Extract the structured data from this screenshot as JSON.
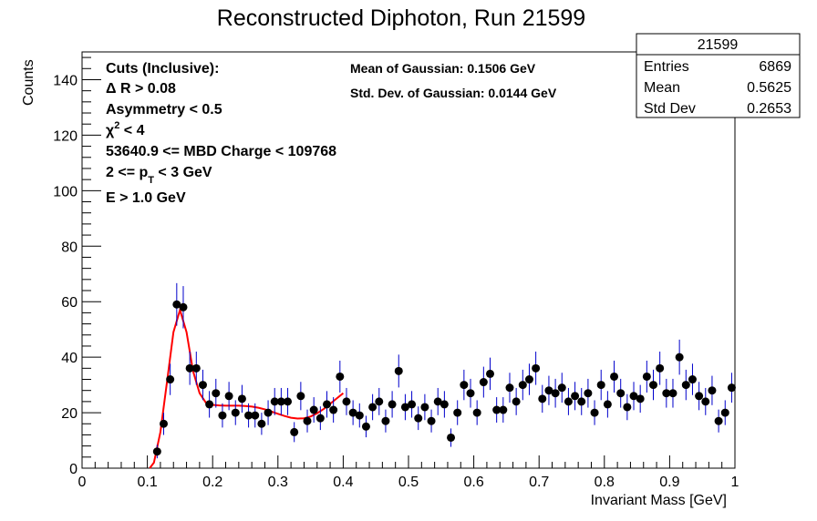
{
  "colors": {
    "fit": "#ff0000",
    "points": "#000000",
    "errors": "#0000cc",
    "frame": "#000000"
  },
  "chart_data": {
    "type": "scatter",
    "title": "Reconstructed Diphoton, Run 21599",
    "xlabel": "Invariant Mass [GeV]",
    "ylabel": "Counts",
    "xlim": [
      0,
      1
    ],
    "ylim": [
      0,
      150
    ],
    "x_ticks": [
      "0",
      "0.1",
      "0.2",
      "0.3",
      "0.4",
      "0.5",
      "0.6",
      "0.7",
      "0.8",
      "0.9",
      "1"
    ],
    "y_ticks": [
      "0",
      "20",
      "40",
      "60",
      "80",
      "100",
      "120",
      "140"
    ],
    "grid": false,
    "legend": "none",
    "cuts": {
      "header": "Cuts (Inclusive):",
      "delta_r": "Δ R > 0.08",
      "asymmetry": "Asymmetry < 0.5",
      "chi2_symbol": "χ",
      "chi2_exp": "2",
      "chi2_rest": " < 4",
      "mbd": "53640.9 <= MBD Charge < 109768",
      "pt_pre": "2 <= p",
      "pt_sub": "T",
      "pt_post": " < 3 GeV",
      "energy": "E > 1.0 GeV"
    },
    "fit_info": {
      "mean": "Mean of Gaussian: 0.1506 GeV",
      "stddev": "Std. Dev. of Gaussian: 0.0144 GeV"
    },
    "stats_box": {
      "title": "21599",
      "rows": [
        {
          "label": "Entries",
          "value": "6869"
        },
        {
          "label": "Mean",
          "value": "0.5625"
        },
        {
          "label": "Std Dev",
          "value": "0.2653"
        }
      ]
    },
    "points": {
      "x": [
        0.115,
        0.125,
        0.135,
        0.145,
        0.155,
        0.165,
        0.175,
        0.185,
        0.195,
        0.205,
        0.215,
        0.225,
        0.235,
        0.245,
        0.255,
        0.265,
        0.275,
        0.285,
        0.295,
        0.305,
        0.315,
        0.325,
        0.335,
        0.345,
        0.355,
        0.365,
        0.375,
        0.385,
        0.395,
        0.405,
        0.415,
        0.425,
        0.435,
        0.445,
        0.455,
        0.465,
        0.475,
        0.485,
        0.495,
        0.505,
        0.515,
        0.525,
        0.535,
        0.545,
        0.555,
        0.565,
        0.575,
        0.585,
        0.595,
        0.605,
        0.615,
        0.625,
        0.635,
        0.645,
        0.655,
        0.665,
        0.675,
        0.685,
        0.695,
        0.705,
        0.715,
        0.725,
        0.735,
        0.745,
        0.755,
        0.765,
        0.775,
        0.785,
        0.795,
        0.805,
        0.815,
        0.825,
        0.835,
        0.845,
        0.855,
        0.865,
        0.875,
        0.885,
        0.895,
        0.905,
        0.915,
        0.925,
        0.935,
        0.945,
        0.955,
        0.965,
        0.975,
        0.985,
        0.995
      ],
      "y": [
        6,
        16,
        32,
        59,
        58,
        36,
        36,
        30,
        23,
        27,
        19,
        26,
        20,
        25,
        19,
        19,
        16,
        20,
        24,
        24,
        24,
        13,
        26,
        17,
        21,
        18,
        23,
        21,
        33,
        24,
        20,
        19,
        15,
        22,
        24,
        17,
        23,
        35,
        22,
        23,
        18,
        22,
        17,
        24,
        23,
        11,
        20,
        30,
        27,
        20,
        31,
        34,
        21,
        21,
        29,
        24,
        30,
        32,
        36,
        25,
        28,
        27,
        29,
        24,
        26,
        24,
        27,
        20,
        30,
        23,
        33,
        27,
        22,
        26,
        25,
        33,
        30,
        36,
        27,
        27,
        40,
        30,
        32,
        26,
        24,
        28,
        17,
        20,
        29
      ]
    },
    "fit": {
      "function": "gaussian + polynomial",
      "mean": 0.1506,
      "sigma": 0.0144,
      "x_range": [
        0.1,
        0.4
      ],
      "x": [
        0.1,
        0.11,
        0.12,
        0.13,
        0.14,
        0.15,
        0.16,
        0.17,
        0.18,
        0.19,
        0.2,
        0.21,
        0.22,
        0.23,
        0.24,
        0.25,
        0.26,
        0.27,
        0.28,
        0.29,
        0.3,
        0.31,
        0.32,
        0.33,
        0.34,
        0.35,
        0.36,
        0.37,
        0.38,
        0.39,
        0.4
      ],
      "y": [
        -3,
        2,
        13,
        31,
        49,
        57,
        49,
        35,
        27,
        23.5,
        22.8,
        22.6,
        22.5,
        22.5,
        22.5,
        22.4,
        22.2,
        21.8,
        21.2,
        20.4,
        19.6,
        18.8,
        18.2,
        17.9,
        18.0,
        18.6,
        19.8,
        21.3,
        23.2,
        25.1,
        27.0
      ]
    }
  }
}
